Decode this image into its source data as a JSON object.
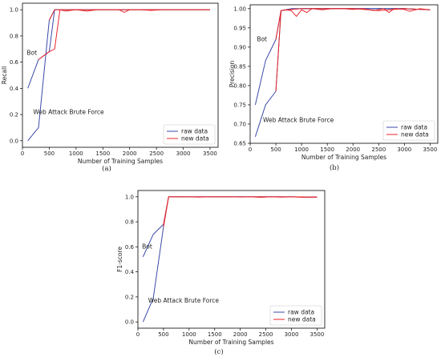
{
  "colors": {
    "raw": "#3b4aa8",
    "new": "#e8262a",
    "axis": "#000000",
    "legend_border": "#cccccc"
  },
  "chart_data": [
    {
      "type": "line",
      "caption": "(a)",
      "xlabel": "Number of Training Samples",
      "ylabel": "Recall",
      "xlim": [
        0,
        3650
      ],
      "ylim": [
        -0.05,
        1.05
      ],
      "xticks": [
        0,
        500,
        1000,
        1500,
        2000,
        2500,
        3000,
        3500
      ],
      "yticks": [
        0.0,
        0.2,
        0.4,
        0.6,
        0.8,
        1.0
      ],
      "ytick_labels": [
        "0.0",
        "0.2",
        "0.4",
        "0.6",
        "0.8",
        "1.0"
      ],
      "legend": {
        "position": "lower-right",
        "entries": [
          "raw data",
          "new data"
        ]
      },
      "annotations": [
        {
          "text": "Bot",
          "x": 80,
          "y": 0.655
        },
        {
          "text": "Web Attack Brute Force",
          "x": 200,
          "y": 0.205
        }
      ],
      "series": [
        {
          "name": "raw data",
          "color_key": "raw",
          "points": [
            [
              100,
              0.4
            ],
            [
              300,
              0.62
            ],
            [
              500,
              0.68
            ],
            [
              600,
              1.0
            ],
            [
              800,
              1.0
            ],
            [
              1000,
              1.0
            ],
            [
              1500,
              1.0
            ],
            [
              2000,
              1.0
            ],
            [
              2500,
              1.0
            ],
            [
              3000,
              1.0
            ],
            [
              3500,
              1.0
            ]
          ]
        },
        {
          "name": "raw data",
          "color_key": "raw",
          "points": [
            [
              100,
              0.0
            ],
            [
              300,
              0.1
            ],
            [
              500,
              0.92
            ],
            [
              600,
              1.0
            ],
            [
              800,
              1.0
            ],
            [
              1000,
              1.0
            ],
            [
              1500,
              1.0
            ],
            [
              2000,
              1.0
            ],
            [
              3000,
              1.0
            ],
            [
              3500,
              1.0
            ]
          ]
        },
        {
          "name": "new data",
          "color_key": "new",
          "points": [
            [
              500,
              0.92
            ],
            [
              600,
              1.0
            ],
            [
              700,
              1.0
            ],
            [
              800,
              0.99
            ],
            [
              1000,
              1.0
            ],
            [
              1100,
              0.995
            ],
            [
              1200,
              0.99
            ],
            [
              1400,
              1.0
            ],
            [
              1600,
              1.0
            ],
            [
              1800,
              1.0
            ],
            [
              1900,
              0.98
            ],
            [
              2000,
              1.0
            ],
            [
              2200,
              1.0
            ],
            [
              2400,
              0.995
            ],
            [
              2600,
              1.0
            ],
            [
              2800,
              1.0
            ],
            [
              3000,
              1.0
            ],
            [
              3200,
              1.0
            ],
            [
              3500,
              1.0
            ]
          ]
        },
        {
          "name": "new data",
          "color_key": "new",
          "points": [
            [
              300,
              0.62
            ],
            [
              500,
              0.68
            ],
            [
              600,
              0.7
            ],
            [
              700,
              1.0
            ],
            [
              800,
              1.0
            ],
            [
              1000,
              1.0
            ],
            [
              1500,
              1.0
            ],
            [
              2000,
              1.0
            ],
            [
              2500,
              1.0
            ],
            [
              3000,
              1.0
            ],
            [
              3500,
              1.0
            ]
          ]
        }
      ]
    },
    {
      "type": "line",
      "caption": "(b)",
      "xlabel": "Number of Training Samples",
      "ylabel": "Precision",
      "xlim": [
        0,
        3650
      ],
      "ylim": [
        0.65,
        1.01
      ],
      "xticks": [
        0,
        500,
        1000,
        1500,
        2000,
        2500,
        3000,
        3500
      ],
      "yticks": [
        0.65,
        0.7,
        0.75,
        0.8,
        0.85,
        0.9,
        0.95,
        1.0
      ],
      "ytick_labels": [
        "0.65",
        "0.70",
        "0.75",
        "0.80",
        "0.85",
        "0.90",
        "0.95",
        "1.00"
      ],
      "legend": {
        "position": "lower-right",
        "entries": [
          "raw data",
          "new data"
        ]
      },
      "annotations": [
        {
          "text": "Bot",
          "x": 130,
          "y": 0.915
        },
        {
          "text": "Web Attack Brute Force",
          "x": 250,
          "y": 0.705
        }
      ],
      "series": [
        {
          "name": "raw data",
          "color_key": "raw",
          "points": [
            [
              100,
              0.75
            ],
            [
              300,
              0.865
            ],
            [
              500,
              0.92
            ],
            [
              600,
              0.995
            ],
            [
              800,
              0.998
            ],
            [
              1000,
              1.0
            ],
            [
              1500,
              1.0
            ],
            [
              2000,
              1.0
            ],
            [
              2500,
              1.0
            ],
            [
              3000,
              1.0
            ],
            [
              3500,
              0.997
            ]
          ]
        },
        {
          "name": "raw data",
          "color_key": "raw",
          "points": [
            [
              100,
              0.667
            ],
            [
              300,
              0.75
            ],
            [
              500,
              0.785
            ],
            [
              600,
              0.995
            ],
            [
              800,
              1.0
            ],
            [
              1000,
              1.0
            ],
            [
              1500,
              1.0
            ],
            [
              2000,
              1.0
            ],
            [
              2500,
              1.0
            ],
            [
              3000,
              1.0
            ],
            [
              3500,
              0.997
            ]
          ]
        },
        {
          "name": "new data",
          "color_key": "new",
          "points": [
            [
              500,
              0.785
            ],
            [
              600,
              0.995
            ],
            [
              700,
              0.997
            ],
            [
              800,
              0.995
            ],
            [
              900,
              0.98
            ],
            [
              1000,
              0.997
            ],
            [
              1100,
              0.99
            ],
            [
              1200,
              1.0
            ],
            [
              1400,
              0.997
            ],
            [
              1600,
              1.0
            ],
            [
              1800,
              1.0
            ],
            [
              2000,
              0.998
            ],
            [
              2200,
              1.0
            ],
            [
              2400,
              0.995
            ],
            [
              2600,
              1.0
            ],
            [
              2700,
              0.99
            ],
            [
              2800,
              1.0
            ],
            [
              3000,
              0.998
            ],
            [
              3100,
              0.993
            ],
            [
              3300,
              1.0
            ],
            [
              3500,
              0.997
            ]
          ]
        },
        {
          "name": "new data",
          "color_key": "new",
          "points": [
            [
              500,
              0.92
            ],
            [
              600,
              0.995
            ],
            [
              800,
              0.998
            ],
            [
              1000,
              1.0
            ],
            [
              1500,
              1.0
            ],
            [
              2000,
              1.0
            ],
            [
              2500,
              0.995
            ],
            [
              3000,
              1.0
            ],
            [
              3500,
              0.997
            ]
          ]
        }
      ]
    },
    {
      "type": "line",
      "caption": "(c)",
      "xlabel": "Number of Training Samples",
      "ylabel": "F1-score",
      "xlim": [
        0,
        3650
      ],
      "ylim": [
        -0.05,
        1.05
      ],
      "xticks": [
        0,
        500,
        1000,
        1500,
        2000,
        2500,
        3000,
        3500
      ],
      "yticks": [
        0.0,
        0.2,
        0.4,
        0.6,
        0.8,
        1.0
      ],
      "ytick_labels": [
        "0.0",
        "0.2",
        "0.4",
        "0.6",
        "0.8",
        "1.0"
      ],
      "legend": {
        "position": "lower-right",
        "entries": [
          "raw data",
          "new data"
        ]
      },
      "annotations": [
        {
          "text": "Bot",
          "x": 80,
          "y": 0.585
        },
        {
          "text": "Web Attack Brute Force",
          "x": 200,
          "y": 0.155
        }
      ],
      "series": [
        {
          "name": "raw data",
          "color_key": "raw",
          "points": [
            [
              100,
              0.52
            ],
            [
              300,
              0.7
            ],
            [
              500,
              0.78
            ],
            [
              600,
              1.0
            ],
            [
              800,
              1.0
            ],
            [
              1000,
              1.0
            ],
            [
              1500,
              1.0
            ],
            [
              2000,
              1.0
            ],
            [
              2500,
              1.0
            ],
            [
              3000,
              1.0
            ],
            [
              3500,
              0.997
            ]
          ]
        },
        {
          "name": "raw data",
          "color_key": "raw",
          "points": [
            [
              100,
              0.0
            ],
            [
              300,
              0.19
            ],
            [
              500,
              0.76
            ],
            [
              600,
              1.0
            ],
            [
              800,
              1.0
            ],
            [
              1000,
              1.0
            ],
            [
              1500,
              1.0
            ],
            [
              2000,
              1.0
            ],
            [
              2500,
              1.0
            ],
            [
              3000,
              1.0
            ],
            [
              3500,
              0.997
            ]
          ]
        },
        {
          "name": "new data",
          "color_key": "new",
          "points": [
            [
              500,
              0.76
            ],
            [
              600,
              1.0
            ],
            [
              800,
              1.0
            ],
            [
              1000,
              1.0
            ],
            [
              1200,
              0.997
            ],
            [
              1400,
              1.0
            ],
            [
              1600,
              1.0
            ],
            [
              1800,
              1.0
            ],
            [
              2000,
              0.998
            ],
            [
              2200,
              1.0
            ],
            [
              2400,
              0.996
            ],
            [
              2600,
              1.0
            ],
            [
              2800,
              0.997
            ],
            [
              3000,
              1.0
            ],
            [
              3200,
              0.996
            ],
            [
              3500,
              0.997
            ]
          ]
        },
        {
          "name": "new data",
          "color_key": "new",
          "points": [
            [
              500,
              0.78
            ],
            [
              600,
              1.0
            ],
            [
              800,
              1.0
            ],
            [
              1000,
              1.0
            ],
            [
              1500,
              1.0
            ],
            [
              2000,
              1.0
            ],
            [
              2500,
              1.0
            ],
            [
              3000,
              1.0
            ],
            [
              3500,
              0.997
            ]
          ]
        }
      ]
    }
  ]
}
